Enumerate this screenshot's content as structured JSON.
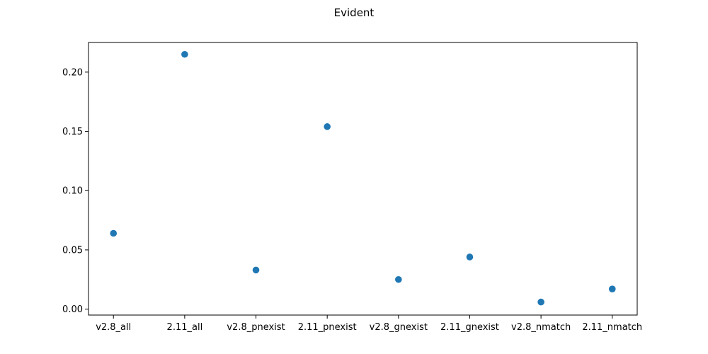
{
  "chart_data": {
    "type": "scatter",
    "title": "Evident",
    "xlabel": "",
    "ylabel": "",
    "categories": [
      "v2.8_all",
      "2.11_all",
      "v2.8_pnexist",
      "2.11_pnexist",
      "v2.8_gnexist",
      "2.11_gnexist",
      "v2.8_nmatch",
      "2.11_nmatch"
    ],
    "values": [
      0.064,
      0.215,
      0.033,
      0.154,
      0.025,
      0.044,
      0.006,
      0.017
    ],
    "ylim": [
      -0.005,
      0.225
    ],
    "yticks": [
      0.0,
      0.05,
      0.1,
      0.15,
      0.2
    ],
    "ytick_labels": [
      "0.00",
      "0.05",
      "0.10",
      "0.15",
      "0.20"
    ],
    "marker_color": "#1f77b4",
    "grid": false,
    "legend": "none"
  }
}
